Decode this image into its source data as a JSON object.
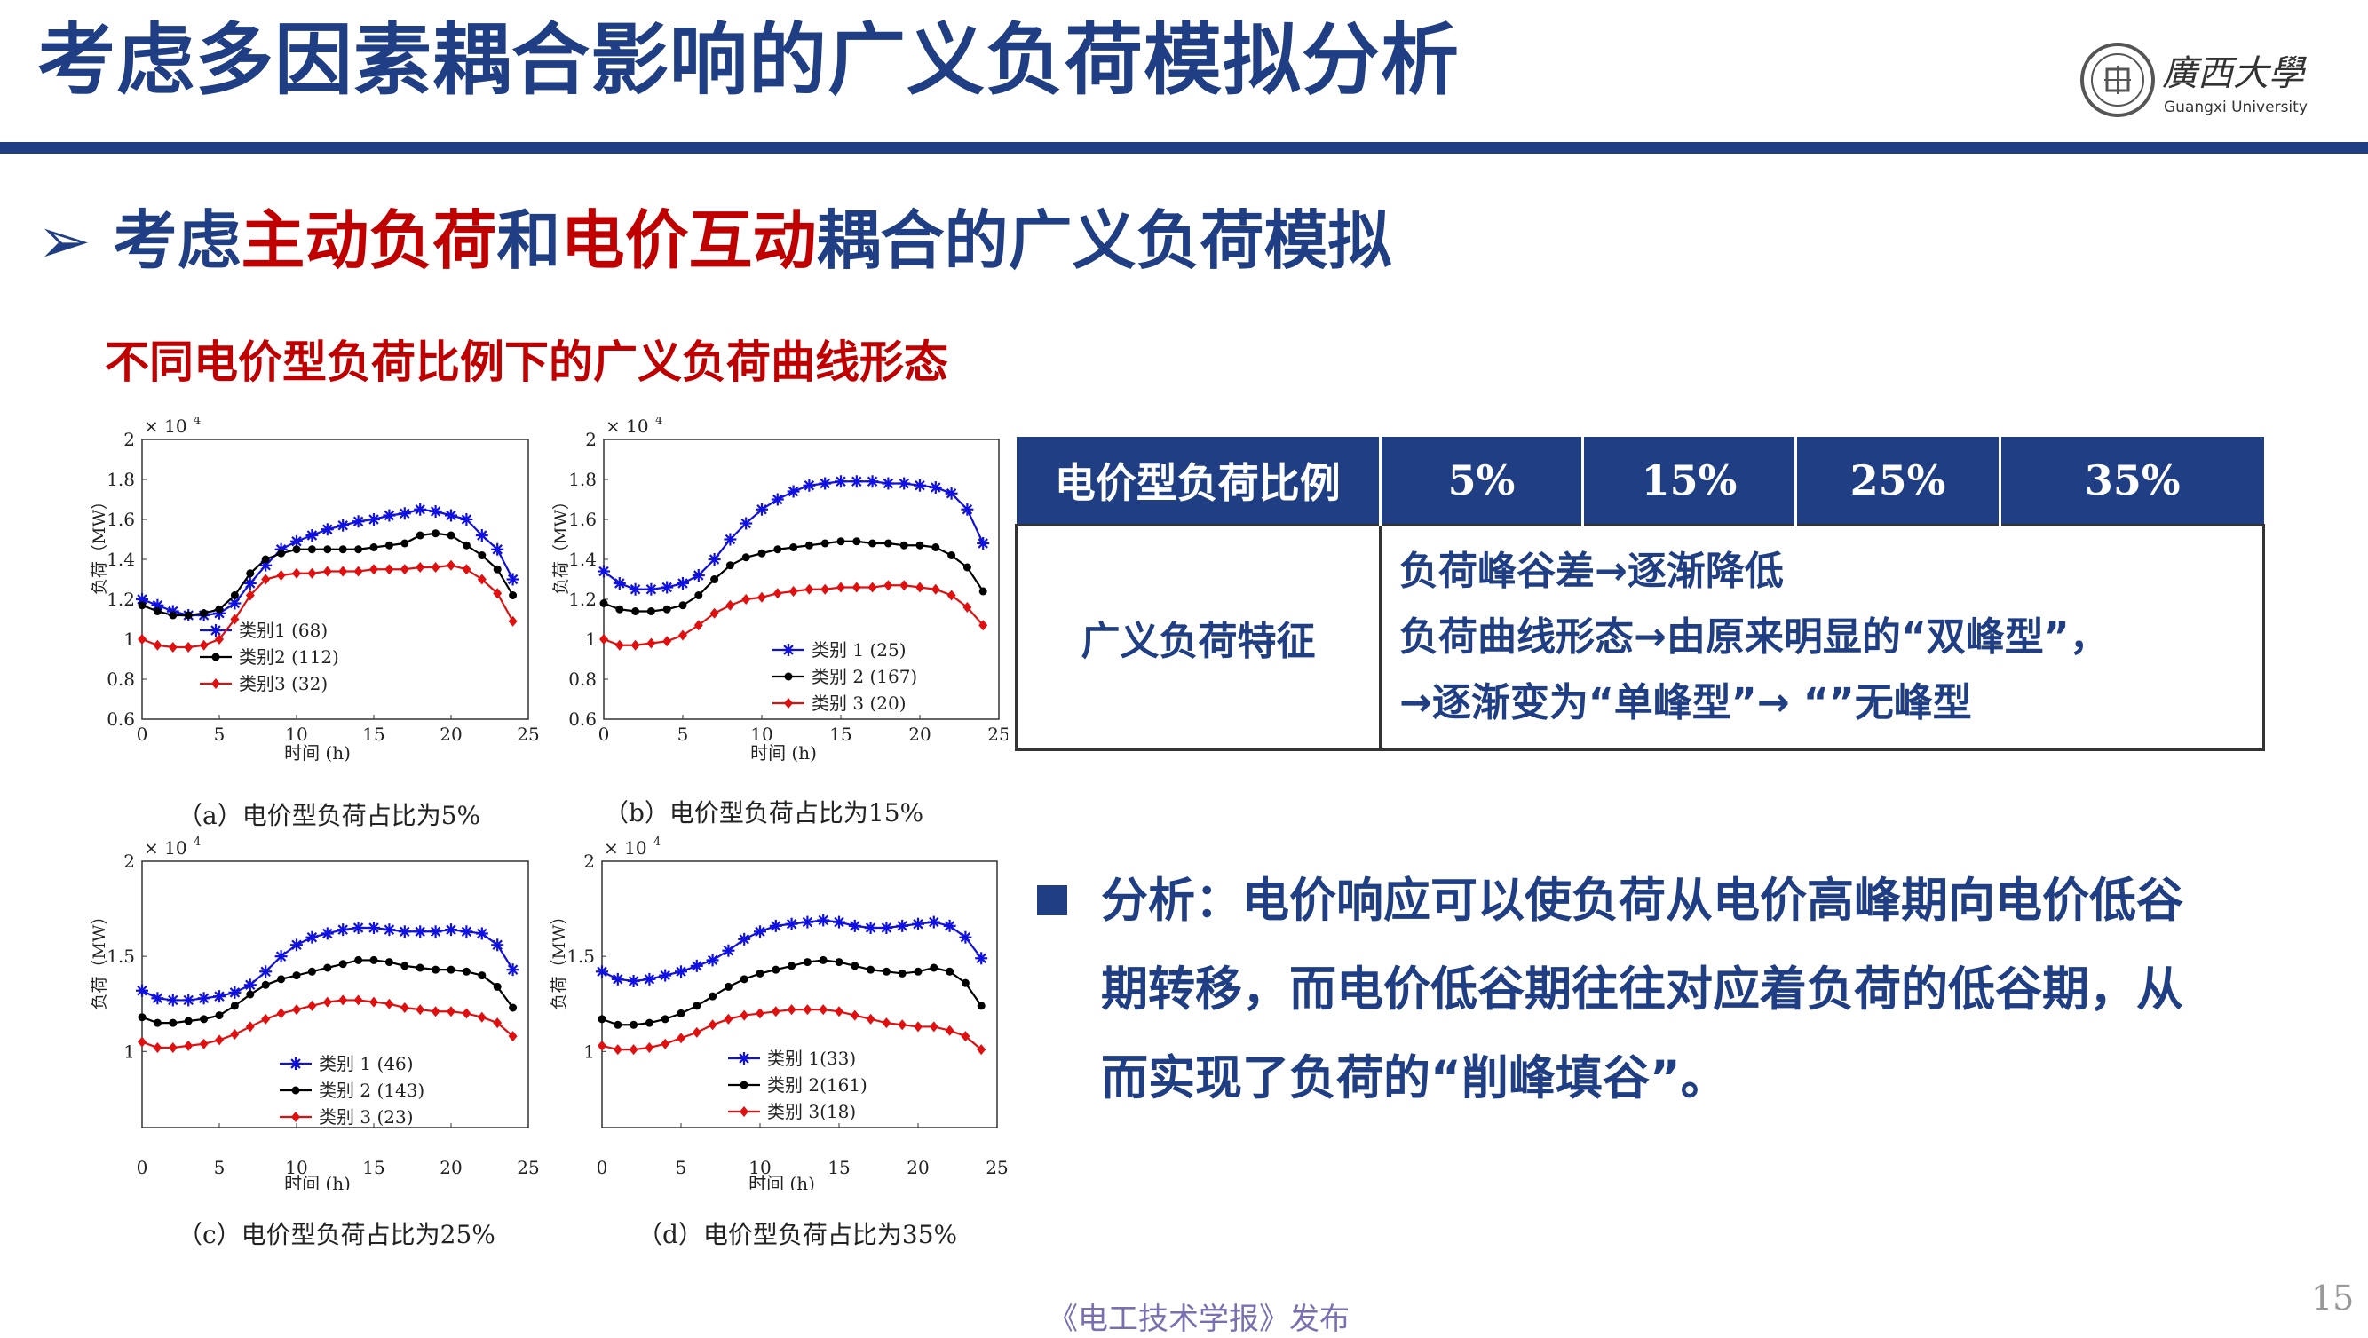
{
  "header": {
    "title": "考虑多因素耦合影响的广义负荷模拟分析",
    "logo_text": "廣西大學",
    "logo_sub": "Guangxi University"
  },
  "subheading": {
    "arrow": "➢",
    "p1": "考虑",
    "h1": "主动负荷",
    "p2": "和",
    "h2": "电价互动",
    "p3": "耦合的广义负荷模拟"
  },
  "figure_caption": "不同电价型负荷比例下的广义负荷曲线形态",
  "table": {
    "headers": [
      "电价型负荷比例",
      "5%",
      "15%",
      "25%",
      "35%"
    ],
    "row_label": "广义负荷特征",
    "lines": [
      "负荷峰谷差→逐渐降低",
      "负荷曲线形态→由原来明显的“双峰型”，",
      "→逐渐变为“单峰型”→ “”无峰型"
    ]
  },
  "analysis": "分析：电价响应可以使负荷从电价高峰期向电价低谷期转移，而电价低谷期往往对应着负荷的低谷期，从而实现了负荷的“削峰填谷”。",
  "footer": "《电工技术学报》发布",
  "page_number": "15",
  "colors": {
    "blue": "#1f3e83",
    "red": "#c00000",
    "series1": "#1010e0",
    "series2": "#000000",
    "series3": "#e01010"
  },
  "chart_data": [
    {
      "type": "line",
      "caption": "（a）电价型负荷占比为5%",
      "multiplier": "× 10",
      "exponent": "4",
      "xlabel": "时间 (h)",
      "ylabel": "负荷（MW）",
      "xlim": [
        0,
        25
      ],
      "ylim": [
        0.6,
        2
      ],
      "xticks": [
        0,
        5,
        10,
        15,
        20,
        25
      ],
      "yticks": [
        0.6,
        0.8,
        1,
        1.2,
        1.4,
        1.6,
        1.8,
        2
      ],
      "ytick_labels": [
        "0.6",
        "0.8",
        "1",
        "1.2",
        "1.4",
        "1.6",
        "1.8",
        "2"
      ],
      "legend": "center-left",
      "series": [
        {
          "name": "类别1 (68)",
          "marker": "star",
          "values": [
            1.2,
            1.17,
            1.14,
            1.12,
            1.12,
            1.13,
            1.18,
            1.28,
            1.37,
            1.45,
            1.49,
            1.52,
            1.55,
            1.57,
            1.59,
            1.6,
            1.62,
            1.63,
            1.65,
            1.64,
            1.62,
            1.6,
            1.52,
            1.45,
            1.3
          ]
        },
        {
          "name": "类别2 (112)",
          "marker": "circle",
          "values": [
            1.17,
            1.14,
            1.12,
            1.12,
            1.13,
            1.15,
            1.22,
            1.33,
            1.4,
            1.43,
            1.45,
            1.45,
            1.45,
            1.45,
            1.45,
            1.46,
            1.47,
            1.48,
            1.52,
            1.53,
            1.52,
            1.47,
            1.42,
            1.35,
            1.22
          ]
        },
        {
          "name": "类别3 (32)",
          "marker": "diamond",
          "values": [
            1.0,
            0.97,
            0.96,
            0.96,
            0.97,
            1.0,
            1.1,
            1.22,
            1.3,
            1.32,
            1.33,
            1.33,
            1.34,
            1.34,
            1.34,
            1.35,
            1.35,
            1.35,
            1.36,
            1.36,
            1.37,
            1.35,
            1.3,
            1.23,
            1.09
          ]
        }
      ]
    },
    {
      "type": "line",
      "caption": "（b）电价型负荷占比为15%",
      "multiplier": "× 10",
      "exponent": "4",
      "xlabel": "时间 (h)",
      "ylabel": "负荷（MW）",
      "xlim": [
        0,
        25
      ],
      "ylim": [
        0.6,
        2
      ],
      "xticks": [
        0,
        5,
        10,
        15,
        20,
        25
      ],
      "yticks": [
        0.6,
        0.8,
        1,
        1.2,
        1.4,
        1.6,
        1.8,
        2
      ],
      "ytick_labels": [
        "0.6",
        "0.8",
        "1",
        "1.2",
        "1.4",
        "1.6",
        "1.8",
        "2"
      ],
      "legend": "center-right",
      "series": [
        {
          "name": "类别 1 (25)",
          "marker": "star",
          "values": [
            1.34,
            1.28,
            1.25,
            1.25,
            1.26,
            1.28,
            1.32,
            1.4,
            1.5,
            1.58,
            1.65,
            1.7,
            1.74,
            1.77,
            1.78,
            1.79,
            1.79,
            1.79,
            1.78,
            1.78,
            1.77,
            1.76,
            1.73,
            1.65,
            1.48
          ]
        },
        {
          "name": "类别 2 (167)",
          "marker": "circle",
          "values": [
            1.18,
            1.15,
            1.14,
            1.14,
            1.15,
            1.17,
            1.22,
            1.3,
            1.37,
            1.41,
            1.43,
            1.45,
            1.46,
            1.47,
            1.48,
            1.49,
            1.49,
            1.48,
            1.48,
            1.47,
            1.47,
            1.46,
            1.42,
            1.36,
            1.24
          ]
        },
        {
          "name": "类别 3 (20)",
          "marker": "diamond",
          "values": [
            1.0,
            0.97,
            0.97,
            0.98,
            0.99,
            1.02,
            1.07,
            1.13,
            1.17,
            1.2,
            1.21,
            1.23,
            1.24,
            1.25,
            1.25,
            1.26,
            1.26,
            1.26,
            1.27,
            1.27,
            1.26,
            1.25,
            1.22,
            1.16,
            1.07
          ]
        }
      ]
    },
    {
      "type": "line",
      "caption": "（c）电价型负荷占比为25%",
      "multiplier": "× 10",
      "exponent": "4",
      "xlabel": "时间 (h)",
      "ylabel": "负荷（MW）",
      "xlim": [
        0,
        25
      ],
      "ylim": [
        0.6,
        2
      ],
      "xticks": [
        0,
        5,
        10,
        15,
        20,
        25
      ],
      "yticks": [
        1,
        1.5,
        2
      ],
      "ytick_labels": [
        "1",
        "1.5",
        "2"
      ],
      "legend": "bottom-center",
      "series": [
        {
          "name": "类别  1 (46)",
          "marker": "star",
          "values": [
            1.32,
            1.28,
            1.27,
            1.27,
            1.28,
            1.29,
            1.31,
            1.35,
            1.42,
            1.5,
            1.56,
            1.6,
            1.62,
            1.64,
            1.65,
            1.65,
            1.64,
            1.63,
            1.63,
            1.63,
            1.64,
            1.63,
            1.62,
            1.56,
            1.43
          ]
        },
        {
          "name": "类别  2 (143)",
          "marker": "circle",
          "values": [
            1.18,
            1.15,
            1.15,
            1.16,
            1.17,
            1.19,
            1.24,
            1.3,
            1.35,
            1.38,
            1.4,
            1.42,
            1.44,
            1.46,
            1.48,
            1.48,
            1.47,
            1.45,
            1.44,
            1.43,
            1.43,
            1.42,
            1.4,
            1.34,
            1.23
          ]
        },
        {
          "name": "类别 3 (23)",
          "marker": "diamond",
          "values": [
            1.05,
            1.02,
            1.02,
            1.03,
            1.04,
            1.06,
            1.09,
            1.13,
            1.17,
            1.2,
            1.22,
            1.24,
            1.26,
            1.27,
            1.27,
            1.26,
            1.25,
            1.23,
            1.22,
            1.21,
            1.21,
            1.2,
            1.18,
            1.15,
            1.08
          ]
        }
      ]
    },
    {
      "type": "line",
      "caption": "（d）电价型负荷占比为35%",
      "multiplier": "× 10",
      "exponent": "4",
      "xlabel": "时间    (h)",
      "ylabel": "负荷（MW）",
      "xlim": [
        0,
        25
      ],
      "ylim": [
        0.6,
        2
      ],
      "xticks": [
        0,
        5,
        10,
        15,
        20,
        25
      ],
      "yticks": [
        1,
        1.5,
        2
      ],
      "ytick_labels": [
        "1",
        "1.5",
        "2"
      ],
      "legend": "bottom-center",
      "series": [
        {
          "name": "类别  1(33)",
          "marker": "star",
          "values": [
            1.42,
            1.38,
            1.37,
            1.38,
            1.4,
            1.42,
            1.45,
            1.48,
            1.53,
            1.59,
            1.63,
            1.66,
            1.67,
            1.68,
            1.69,
            1.68,
            1.66,
            1.65,
            1.65,
            1.66,
            1.67,
            1.68,
            1.66,
            1.6,
            1.49
          ]
        },
        {
          "name": "类别  2(161)",
          "marker": "circle",
          "values": [
            1.17,
            1.14,
            1.14,
            1.15,
            1.17,
            1.2,
            1.24,
            1.29,
            1.34,
            1.38,
            1.41,
            1.43,
            1.45,
            1.47,
            1.48,
            1.47,
            1.45,
            1.43,
            1.42,
            1.41,
            1.42,
            1.44,
            1.42,
            1.36,
            1.24
          ]
        },
        {
          "name": "类别  3(18)",
          "marker": "diamond",
          "values": [
            1.03,
            1.01,
            1.01,
            1.02,
            1.04,
            1.07,
            1.1,
            1.14,
            1.17,
            1.19,
            1.2,
            1.21,
            1.22,
            1.22,
            1.22,
            1.21,
            1.19,
            1.17,
            1.15,
            1.14,
            1.13,
            1.13,
            1.11,
            1.08,
            1.01
          ]
        }
      ]
    }
  ]
}
